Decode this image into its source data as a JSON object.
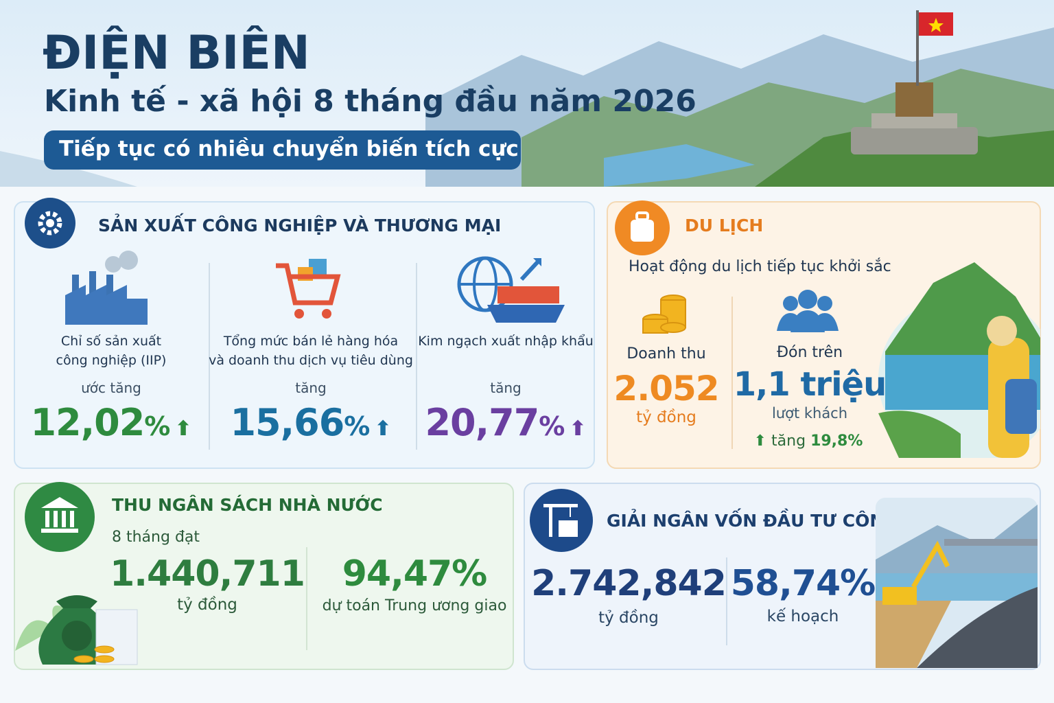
{
  "header": {
    "title": "ĐIỆN BIÊN",
    "subtitle": "Kinh tế - xã hội 8 tháng đầu năm 2026",
    "tagline": "Tiếp tục có nhiều chuyển biến tích cực"
  },
  "industry": {
    "title": "SẢN XUẤT CÔNG NGHIỆP VÀ THƯƠNG MẠI",
    "items": [
      {
        "label": [
          "Chỉ số sản xuất",
          "công nghiệp (IIP)"
        ],
        "prefix": "ước tăng",
        "value": "12,02",
        "unit": "%"
      },
      {
        "label": [
          "Tổng mức bán lẻ hàng hóa",
          "và doanh thu dịch vụ tiêu dùng"
        ],
        "prefix": "tăng",
        "value": "15,66",
        "unit": "%"
      },
      {
        "label": [
          "Kim ngạch xuất nhập khẩu"
        ],
        "prefix": "tăng",
        "value": "20,77",
        "unit": "%"
      }
    ]
  },
  "tourism": {
    "title": "DU LỊCH",
    "subtitle": "Hoạt động du lịch tiếp tục khởi sắc",
    "revenue": {
      "label": "Doanh thu",
      "value": "2.052",
      "unit": "tỷ đồng"
    },
    "visitors": {
      "label": "Đón trên",
      "value": "1,1 triệu",
      "unit": "lượt khách",
      "growth_label": "tăng",
      "growth": "19,8%"
    }
  },
  "budget": {
    "title": "THU NGÂN SÁCH NHÀ NƯỚC",
    "period": "8 tháng đạt",
    "amount": {
      "value": "1.440,711",
      "unit": "tỷ đồng"
    },
    "ratio": {
      "value": "94,47%",
      "unit": "dự toán Trung ương giao"
    }
  },
  "investment": {
    "title": "GIẢI NGÂN VỐN ĐẦU TƯ CÔNG",
    "amount": {
      "value": "2.742,842",
      "unit": "tỷ đồng"
    },
    "ratio": {
      "value": "58,74%",
      "unit": "kế hoạch"
    }
  }
}
